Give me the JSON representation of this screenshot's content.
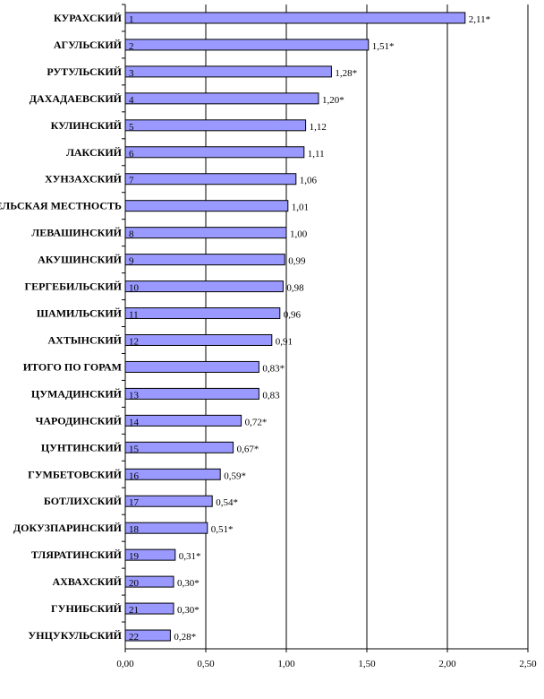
{
  "chart_data": {
    "type": "bar",
    "orientation": "horizontal",
    "bar_color": "#9999ff",
    "grid": true,
    "xlim": [
      0,
      2.5
    ],
    "x_ticks": [
      "0,00",
      "0,50",
      "1,00",
      "1,50",
      "2,00",
      "2,50"
    ],
    "categories": [
      "КУРАХСКИЙ",
      "АГУЛЬСКИЙ",
      "РУТУЛЬСКИЙ",
      "ДАХАДАЕВСКИЙ",
      "КУЛИНСКИЙ",
      "ЛАКСКИЙ",
      "ХУНЗАХСКИЙ",
      "СЕЛЬСКАЯ МЕСТНОСТЬ",
      "ЛЕВАШИНСКИЙ",
      "АКУШИНСКИЙ",
      "ГЕРГЕБИЛЬСКИЙ",
      "ШАМИЛЬСКИЙ",
      "АХТЫНСКИЙ",
      "ИТОГО ПО ГОРАМ",
      "ЦУМАДИНСКИЙ",
      "ЧАРОДИНСКИЙ",
      "ЦУНТИНСКИЙ",
      "ГУМБЕТОВСКИЙ",
      "БОТЛИХСКИЙ",
      "ДОКУЗПАРИНСКИЙ",
      "ТЛЯРАТИНСКИЙ",
      "АХВАХСКИЙ",
      "ГУНИБСКИЙ",
      "УНЦУКУЛЬСКИЙ"
    ],
    "ranks": [
      "1",
      "2",
      "3",
      "4",
      "5",
      "6",
      "7",
      "",
      "8",
      "9",
      "10",
      "11",
      "12",
      "",
      "13",
      "14",
      "15",
      "16",
      "17",
      "18",
      "19",
      "20",
      "21",
      "22"
    ],
    "values": [
      2.11,
      1.51,
      1.28,
      1.2,
      1.12,
      1.11,
      1.06,
      1.01,
      1.0,
      0.99,
      0.98,
      0.96,
      0.91,
      0.83,
      0.83,
      0.72,
      0.67,
      0.59,
      0.54,
      0.51,
      0.31,
      0.3,
      0.3,
      0.28
    ],
    "value_labels": [
      "2,11*",
      "1,51*",
      "1,28*",
      "1,20*",
      "1,12",
      "1,11",
      "1,06",
      "1,01",
      "1,00",
      "0,99",
      "0,98",
      "0,96",
      "0,91",
      "0,83*",
      "0,83",
      "0,72*",
      "0,67*",
      "0,59*",
      "0,54*",
      "0,51*",
      "0,31*",
      "0,30*",
      "0,30*",
      "0,28*"
    ]
  }
}
